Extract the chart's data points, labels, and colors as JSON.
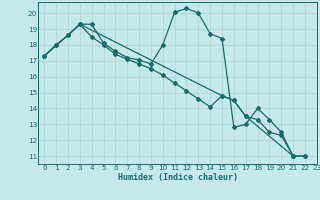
{
  "xlabel": "Humidex (Indice chaleur)",
  "background_color": "#c5e8e8",
  "grid_color": "#b0d0d0",
  "line_color": "#1a6b6b",
  "xlim": [
    -0.5,
    23
  ],
  "ylim": [
    10.5,
    20.7
  ],
  "yticks": [
    11,
    12,
    13,
    14,
    15,
    16,
    17,
    18,
    19,
    20
  ],
  "xticks": [
    0,
    1,
    2,
    3,
    4,
    5,
    6,
    7,
    8,
    9,
    10,
    11,
    12,
    13,
    14,
    15,
    16,
    17,
    18,
    19,
    20,
    21,
    22,
    23
  ],
  "xlabel_fontsize": 6.0,
  "tick_fontsize": 5.2,
  "series1_x": [
    0,
    1,
    2,
    3,
    4,
    5,
    6,
    7,
    8,
    9,
    10,
    11,
    12,
    13,
    14,
    15,
    16,
    17,
    18,
    19,
    20,
    21,
    22
  ],
  "series1_y": [
    17.3,
    18.0,
    18.6,
    19.3,
    19.3,
    18.1,
    17.6,
    17.2,
    17.05,
    16.8,
    18.0,
    20.05,
    20.3,
    20.0,
    18.7,
    18.4,
    12.8,
    13.0,
    14.0,
    13.3,
    12.5,
    11.0,
    11.0
  ],
  "series2_x": [
    0,
    1,
    2,
    3,
    4,
    5,
    6,
    7,
    8,
    9,
    10,
    11,
    12,
    13,
    14,
    15,
    16,
    17,
    18,
    19,
    20,
    21
  ],
  "series2_y": [
    17.3,
    18.0,
    18.6,
    19.3,
    18.5,
    18.0,
    17.4,
    17.1,
    16.8,
    16.5,
    16.1,
    15.6,
    15.1,
    14.6,
    14.1,
    14.8,
    14.5,
    13.5,
    13.3,
    12.5,
    12.3,
    11.0
  ],
  "series3_x": [
    0,
    3,
    15,
    16,
    17,
    21,
    22
  ],
  "series3_y": [
    17.3,
    19.3,
    14.8,
    14.5,
    13.5,
    11.0,
    11.0
  ]
}
